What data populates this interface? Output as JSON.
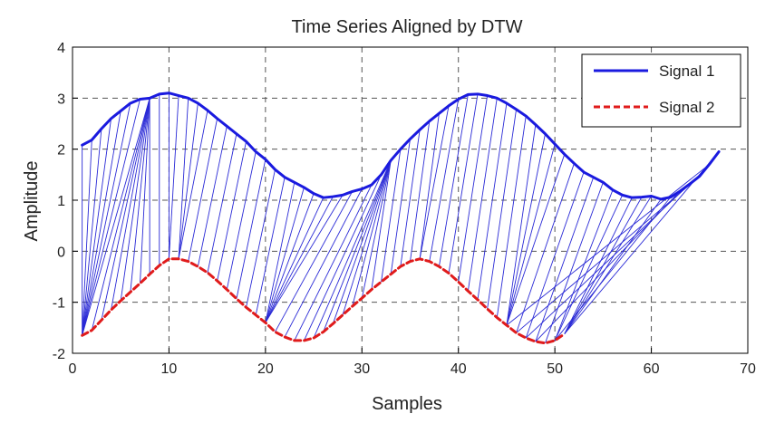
{
  "chart_data": {
    "type": "line",
    "title": "Time Series Aligned by DTW",
    "xlabel": "Samples",
    "ylabel": "Amplitude",
    "xlim": [
      0,
      70
    ],
    "ylim": [
      -2,
      4
    ],
    "xticks": [
      0,
      10,
      20,
      30,
      40,
      50,
      60,
      70
    ],
    "yticks": [
      -2,
      -1,
      0,
      1,
      2,
      3,
      4
    ],
    "grid": true,
    "legend_position": "top-right",
    "series": [
      {
        "name": "Signal 1",
        "color": "#1a1adf",
        "style": "solid",
        "x": [
          1,
          2,
          3,
          4,
          5,
          6,
          7,
          8,
          9,
          10,
          11,
          12,
          13,
          14,
          15,
          16,
          17,
          18,
          19,
          20,
          21,
          22,
          23,
          24,
          25,
          26,
          27,
          28,
          29,
          30,
          31,
          32,
          33,
          34,
          35,
          36,
          37,
          38,
          39,
          40,
          41,
          42,
          43,
          44,
          45,
          46,
          47,
          48,
          49,
          50,
          51,
          52,
          53,
          54,
          55,
          56,
          57,
          58,
          59,
          60,
          61,
          62,
          63,
          64,
          65,
          66,
          67
        ],
        "values": [
          2.08,
          2.18,
          2.4,
          2.6,
          2.75,
          2.9,
          2.98,
          3.0,
          3.08,
          3.1,
          3.05,
          3.0,
          2.9,
          2.76,
          2.6,
          2.45,
          2.3,
          2.15,
          1.95,
          1.8,
          1.6,
          1.45,
          1.35,
          1.25,
          1.13,
          1.05,
          1.07,
          1.1,
          1.17,
          1.22,
          1.3,
          1.5,
          1.78,
          2.0,
          2.2,
          2.38,
          2.55,
          2.7,
          2.85,
          2.98,
          3.07,
          3.08,
          3.05,
          3.0,
          2.9,
          2.78,
          2.65,
          2.48,
          2.3,
          2.1,
          1.9,
          1.72,
          1.55,
          1.45,
          1.35,
          1.2,
          1.1,
          1.05,
          1.06,
          1.08,
          1.02,
          1.06,
          1.18,
          1.32,
          1.47,
          1.7,
          1.95
        ]
      },
      {
        "name": "Signal 2",
        "color": "#e01b1b",
        "style": "dashed",
        "x": [
          1,
          2,
          3,
          4,
          5,
          6,
          7,
          8,
          9,
          10,
          11,
          12,
          13,
          14,
          15,
          16,
          17,
          18,
          19,
          20,
          21,
          22,
          23,
          24,
          25,
          26,
          27,
          28,
          29,
          30,
          31,
          32,
          33,
          34,
          35,
          36,
          37,
          38,
          39,
          40,
          41,
          42,
          43,
          44,
          45,
          46,
          47,
          48,
          49,
          50,
          51
        ],
        "values": [
          -1.65,
          -1.55,
          -1.35,
          -1.15,
          -0.97,
          -0.8,
          -0.63,
          -0.45,
          -0.28,
          -0.15,
          -0.15,
          -0.2,
          -0.3,
          -0.42,
          -0.58,
          -0.75,
          -0.93,
          -1.1,
          -1.25,
          -1.4,
          -1.58,
          -1.68,
          -1.75,
          -1.75,
          -1.7,
          -1.58,
          -1.42,
          -1.25,
          -1.08,
          -0.92,
          -0.75,
          -0.6,
          -0.45,
          -0.3,
          -0.2,
          -0.15,
          -0.2,
          -0.3,
          -0.43,
          -0.6,
          -0.78,
          -0.95,
          -1.13,
          -1.3,
          -1.45,
          -1.6,
          -1.7,
          -1.77,
          -1.8,
          -1.75,
          -1.62
        ]
      }
    ],
    "alignment": {
      "color": "#2a2ad6",
      "pairs": [
        [
          1,
          1
        ],
        [
          2,
          1
        ],
        [
          3,
          1
        ],
        [
          4,
          1
        ],
        [
          5,
          1
        ],
        [
          6,
          1
        ],
        [
          7,
          1
        ],
        [
          8,
          1
        ],
        [
          8,
          2
        ],
        [
          8,
          3
        ],
        [
          8,
          4
        ],
        [
          8,
          5
        ],
        [
          8,
          6
        ],
        [
          8,
          7
        ],
        [
          8,
          8
        ],
        [
          9,
          9
        ],
        [
          10,
          10
        ],
        [
          11,
          10
        ],
        [
          12,
          11
        ],
        [
          13,
          11
        ],
        [
          14,
          11
        ],
        [
          15,
          12
        ],
        [
          16,
          13
        ],
        [
          17,
          14
        ],
        [
          18,
          15
        ],
        [
          19,
          16
        ],
        [
          20,
          17
        ],
        [
          21,
          18
        ],
        [
          22,
          19
        ],
        [
          23,
          20
        ],
        [
          24,
          20
        ],
        [
          25,
          20
        ],
        [
          26,
          20
        ],
        [
          27,
          20
        ],
        [
          28,
          20
        ],
        [
          29,
          21
        ],
        [
          30,
          22
        ],
        [
          31,
          23
        ],
        [
          32,
          24
        ],
        [
          33,
          25
        ],
        [
          33,
          26
        ],
        [
          33,
          27
        ],
        [
          33,
          28
        ],
        [
          33,
          29
        ],
        [
          33,
          30
        ],
        [
          33,
          31
        ],
        [
          34,
          32
        ],
        [
          35,
          33
        ],
        [
          36,
          34
        ],
        [
          37,
          35
        ],
        [
          38,
          36
        ],
        [
          39,
          36
        ],
        [
          40,
          37
        ],
        [
          41,
          38
        ],
        [
          42,
          39
        ],
        [
          43,
          40
        ],
        [
          44,
          41
        ],
        [
          45,
          42
        ],
        [
          46,
          43
        ],
        [
          47,
          44
        ],
        [
          48,
          45
        ],
        [
          49,
          45
        ],
        [
          50,
          45
        ],
        [
          51,
          45
        ],
        [
          52,
          46
        ],
        [
          53,
          47
        ],
        [
          54,
          48
        ],
        [
          55,
          49
        ],
        [
          56,
          50
        ],
        [
          57,
          50
        ],
        [
          58,
          51
        ],
        [
          59,
          51
        ],
        [
          60,
          51
        ],
        [
          61,
          51
        ],
        [
          62,
          50
        ],
        [
          63,
          48
        ],
        [
          64,
          47
        ],
        [
          65,
          46
        ],
        [
          66,
          45
        ],
        [
          67,
          51
        ]
      ]
    }
  }
}
